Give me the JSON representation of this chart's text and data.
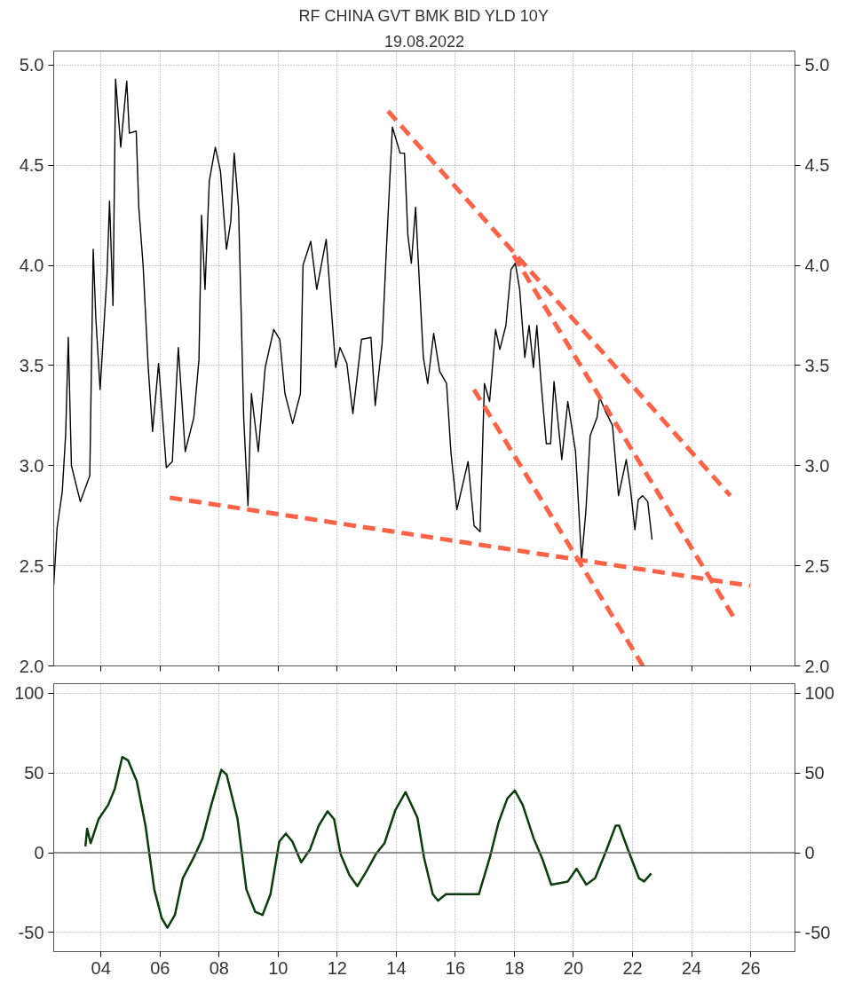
{
  "chart_data": [
    {
      "type": "line",
      "title": "RF CHINA GVT BMK BID YLD 10Y",
      "subtitle": "19.08.2022",
      "xlim": [
        2002.4,
        2027.5
      ],
      "xticks": [
        {
          "value": 2004,
          "label": null
        },
        {
          "value": 2006,
          "label": null
        },
        {
          "value": 2008,
          "label": null
        },
        {
          "value": 2010,
          "label": null
        },
        {
          "value": 2012,
          "label": null
        },
        {
          "value": 2014,
          "label": null
        },
        {
          "value": 2016,
          "label": null
        },
        {
          "value": 2018,
          "label": null
        },
        {
          "value": 2020,
          "label": null
        },
        {
          "value": 2022,
          "label": null
        },
        {
          "value": 2024,
          "label": null
        },
        {
          "value": 2026,
          "label": null
        }
      ],
      "ylim": [
        2.0,
        5.07
      ],
      "yticks": [
        {
          "value": 2.0,
          "label": "2.0"
        },
        {
          "value": 2.5,
          "label": "2.5"
        },
        {
          "value": 3.0,
          "label": "3.0"
        },
        {
          "value": 3.5,
          "label": "3.5"
        },
        {
          "value": 4.0,
          "label": "4.0"
        },
        {
          "value": 4.5,
          "label": "4.5"
        },
        {
          "value": 5.0,
          "label": "5.0"
        }
      ],
      "y2lim": [
        2.0,
        5.07
      ],
      "y2ticks": [
        {
          "value": 2.0,
          "label": "2.0"
        },
        {
          "value": 2.5,
          "label": "2.5"
        },
        {
          "value": 3.0,
          "label": "3.0"
        },
        {
          "value": 3.5,
          "label": "3.5"
        },
        {
          "value": 4.0,
          "label": "4.0"
        },
        {
          "value": 4.5,
          "label": "4.5"
        },
        {
          "value": 5.0,
          "label": "5.0"
        }
      ],
      "tick_labels": "y",
      "grid": true,
      "series": [
        {
          "color": "#000000",
          "line_style": "solid",
          "x": [
            2002.4,
            2002.515,
            2002.69,
            2002.806,
            2002.894,
            2003.0,
            2003.301,
            2003.622,
            2003.738,
            2003.825,
            2003.971,
            2004.204,
            2004.291,
            2004.408,
            2004.495,
            2004.67,
            2004.873,
            2004.961,
            2005.194,
            2005.281,
            2005.427,
            2005.601,
            2005.747,
            2005.951,
            2006.213,
            2006.416,
            2006.62,
            2006.853,
            2007.144,
            2007.319,
            2007.406,
            2007.523,
            2007.668,
            2007.872,
            2008.047,
            2008.25,
            2008.396,
            2008.512,
            2008.658,
            2008.745,
            2008.833,
            2008.978,
            2009.095,
            2009.328,
            2009.561,
            2009.852,
            2010.055,
            2010.23,
            2010.492,
            2010.754,
            2010.841,
            2011.103,
            2011.307,
            2011.627,
            2011.802,
            2011.948,
            2012.093,
            2012.326,
            2012.53,
            2012.821,
            2013.141,
            2013.287,
            2013.52,
            2013.665,
            2013.869,
            2014.131,
            2014.277,
            2014.393,
            2014.51,
            2014.655,
            2014.742,
            2014.917,
            2015.063,
            2015.266,
            2015.47,
            2015.703,
            2015.849,
            2016.052,
            2016.431,
            2016.635,
            2016.838,
            2016.984,
            2017.159,
            2017.362,
            2017.508,
            2017.712,
            2017.886,
            2018.032,
            2018.178,
            2018.352,
            2018.498,
            2018.643,
            2018.76,
            2018.905,
            2019.08,
            2019.226,
            2019.342,
            2019.604,
            2019.808,
            2020.07,
            2020.274,
            2020.419,
            2020.565,
            2020.798,
            2020.885,
            2021.089,
            2021.322,
            2021.525,
            2021.788,
            2021.934,
            2022.079,
            2022.195,
            2022.341,
            2022.515,
            2022.661
          ],
          "values": [
            2.4,
            2.69,
            2.87,
            3.16,
            3.64,
            3.0,
            2.82,
            2.95,
            4.08,
            3.74,
            3.38,
            3.95,
            4.32,
            3.8,
            4.93,
            4.59,
            4.92,
            4.66,
            4.67,
            4.29,
            4.0,
            3.49,
            3.17,
            3.51,
            2.99,
            3.02,
            3.59,
            3.07,
            3.24,
            3.53,
            4.25,
            3.88,
            4.42,
            4.59,
            4.47,
            4.08,
            4.22,
            4.56,
            4.29,
            3.78,
            3.24,
            2.8,
            3.36,
            3.07,
            3.49,
            3.68,
            3.63,
            3.36,
            3.21,
            3.36,
            4.0,
            4.12,
            3.88,
            4.13,
            3.78,
            3.49,
            3.59,
            3.51,
            3.26,
            3.63,
            3.64,
            3.3,
            3.61,
            4.08,
            4.69,
            4.56,
            4.56,
            4.15,
            4.01,
            4.29,
            4.03,
            3.54,
            3.41,
            3.66,
            3.47,
            3.41,
            3.07,
            2.78,
            3.02,
            2.7,
            2.67,
            3.41,
            3.32,
            3.68,
            3.58,
            3.7,
            3.98,
            4.01,
            3.88,
            3.54,
            3.7,
            3.49,
            3.7,
            3.41,
            3.11,
            3.11,
            3.42,
            3.03,
            3.32,
            3.07,
            2.53,
            2.77,
            3.15,
            3.24,
            3.34,
            3.27,
            3.2,
            2.85,
            3.03,
            2.88,
            2.68,
            2.83,
            2.85,
            2.82,
            2.63
          ]
        },
        {
          "color": "#ff6347",
          "line_style": "dashed",
          "x": [
            2013.72,
            2025.31
          ],
          "values": [
            4.77,
            2.85
          ]
        },
        {
          "color": "#ff6347",
          "line_style": "dashed",
          "x": [
            2006.33,
            2025.98
          ],
          "values": [
            2.84,
            2.4
          ]
        },
        {
          "color": "#ff6347",
          "line_style": "dashed",
          "x": [
            2017.97,
            2025.48
          ],
          "values": [
            4.05,
            2.23
          ]
        },
        {
          "color": "#ff6347",
          "line_style": "dashed",
          "x": [
            2016.63,
            2022.35
          ],
          "values": [
            3.38,
            2.0
          ]
        }
      ]
    },
    {
      "type": "line",
      "xlim": [
        2002.4,
        2027.5
      ],
      "xticks": [
        {
          "value": 2004,
          "label": "04"
        },
        {
          "value": 2006,
          "label": "06"
        },
        {
          "value": 2008,
          "label": "08"
        },
        {
          "value": 2010,
          "label": "10"
        },
        {
          "value": 2012,
          "label": "12"
        },
        {
          "value": 2014,
          "label": "14"
        },
        {
          "value": 2016,
          "label": "16"
        },
        {
          "value": 2018,
          "label": "18"
        },
        {
          "value": 2020,
          "label": "20"
        },
        {
          "value": 2022,
          "label": "22"
        },
        {
          "value": 2024,
          "label": "24"
        },
        {
          "value": 2026,
          "label": "26"
        }
      ],
      "ylim": [
        -62,
        106
      ],
      "yticks": [
        -50,
        0,
        50,
        100
      ],
      "y2lim": [
        -62,
        106
      ],
      "y2ticks": [
        -50,
        0,
        50,
        100
      ],
      "grid": true,
      "ref_lines": [
        {
          "axis": "y",
          "value": 0,
          "color": "#707070",
          "line_style": "solid"
        }
      ],
      "series": [
        {
          "color": "#0b3d0b",
          "line_style": "solid",
          "x": [
            2003.473,
            2003.532,
            2003.651,
            2003.919,
            2004.245,
            2004.468,
            2004.721,
            2004.914,
            2005.211,
            2005.508,
            2005.805,
            2006.057,
            2006.25,
            2006.503,
            2006.77,
            2007.142,
            2007.439,
            2007.736,
            2008.077,
            2008.255,
            2008.627,
            2008.924,
            2009.221,
            2009.473,
            2009.741,
            2010.038,
            2010.26,
            2010.483,
            2010.78,
            2011.077,
            2011.374,
            2011.672,
            2011.894,
            2012.117,
            2012.414,
            2012.681,
            2013.008,
            2013.305,
            2013.602,
            2013.974,
            2014.315,
            2014.716,
            2014.939,
            2015.236,
            2015.414,
            2015.682,
            2015.978,
            2016.276,
            2016.796,
            2017.167,
            2017.464,
            2017.761,
            2018.013,
            2018.281,
            2018.652,
            2018.949,
            2019.246,
            2019.543,
            2019.81,
            2020.107,
            2020.434,
            2020.731,
            2021.102,
            2021.429,
            2021.548,
            2021.845,
            2022.216,
            2022.394,
            2022.632
          ],
          "values": [
            4,
            15,
            6,
            21,
            30,
            40,
            60,
            58,
            45,
            17,
            -23,
            -41,
            -47,
            -39,
            -16,
            -3,
            9,
            30,
            52,
            49,
            21,
            -23,
            -37,
            -39,
            -26,
            7,
            12,
            7,
            -6,
            2,
            17,
            26,
            21,
            -1,
            -14,
            -21,
            -11,
            -1,
            6,
            27,
            38,
            22,
            -3,
            -26,
            -30,
            -26,
            -26,
            -26,
            -26,
            -3,
            19,
            34,
            39,
            30,
            9,
            -4,
            -20,
            -19,
            -18,
            -10,
            -20,
            -16,
            1,
            17,
            17,
            2,
            -16,
            -18,
            -13
          ]
        }
      ]
    }
  ]
}
